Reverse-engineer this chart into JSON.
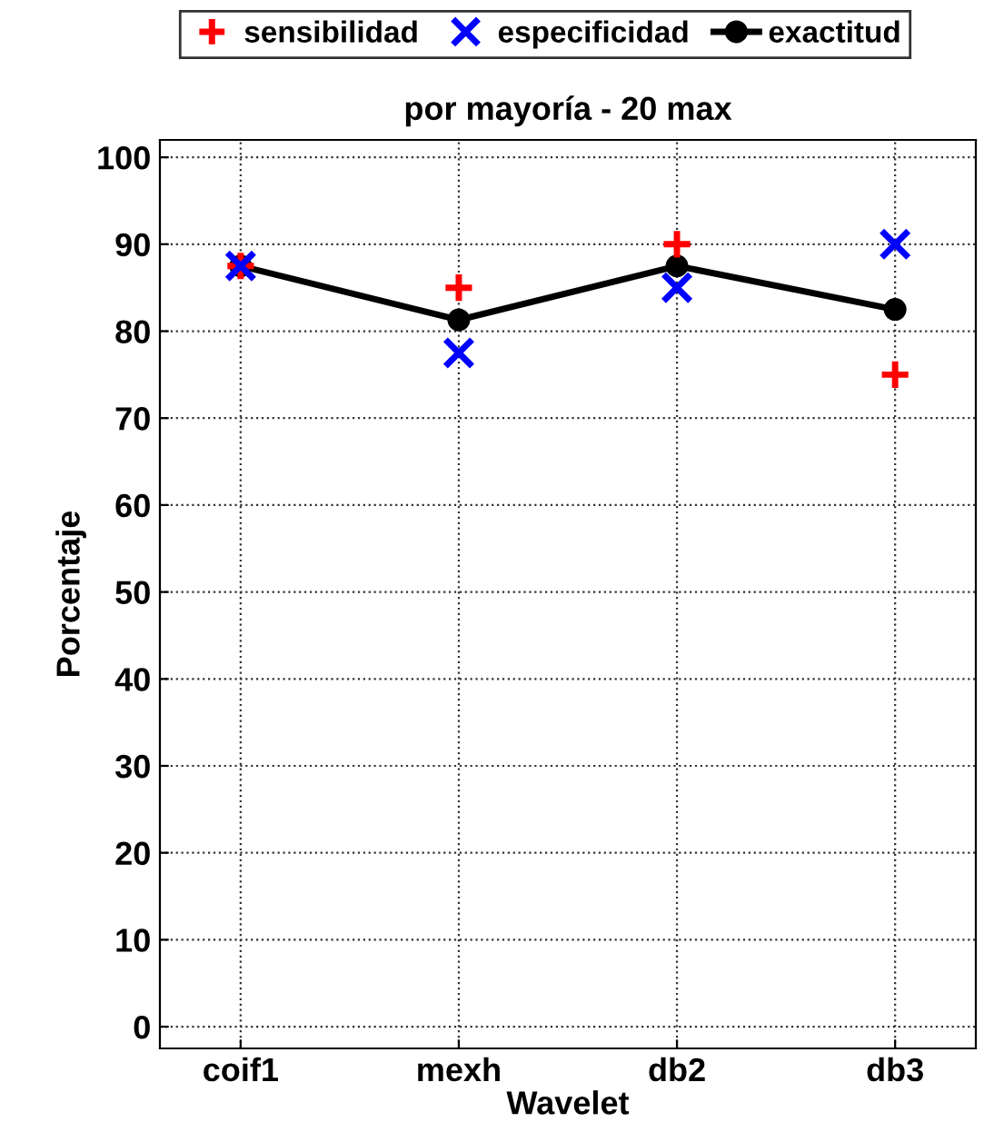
{
  "chart_data": {
    "type": "scatter",
    "title": "por mayoría - 20 max",
    "xlabel": "Wavelet",
    "ylabel": "Porcentaje",
    "categories": [
      "coif1",
      "mexh",
      "db2",
      "db3"
    ],
    "series": [
      {
        "name": "sensibilidad",
        "marker": "plus",
        "color": "#ff0000",
        "values": [
          87.5,
          85,
          90,
          75
        ]
      },
      {
        "name": "especificidad",
        "marker": "cross",
        "color": "#0000ff",
        "values": [
          87.5,
          77.5,
          85,
          90
        ]
      },
      {
        "name": "exactitud",
        "type": "line",
        "marker": "circle",
        "line_style": "solid",
        "color": "#000000",
        "values": [
          87.5,
          81.3,
          87.5,
          82.5
        ]
      }
    ],
    "ylim": [
      -2.5,
      102
    ],
    "yticks": [
      0,
      10,
      20,
      30,
      40,
      50,
      60,
      70,
      80,
      90,
      100
    ],
    "grid": true,
    "legend": "top"
  }
}
